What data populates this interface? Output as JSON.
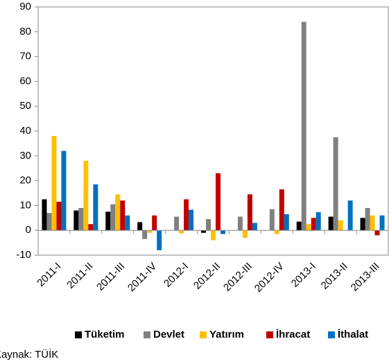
{
  "chart_data": {
    "type": "bar",
    "categories": [
      "2011-I",
      "2011-II",
      "2011-III",
      "2011-IV",
      "2012-I",
      "2012-II",
      "2012-III",
      "2012-IV",
      "2013-I",
      "2013-II",
      "2013-III"
    ],
    "series": [
      {
        "name": "Tüketim",
        "color": "#000000",
        "values": [
          12.5,
          8,
          7.5,
          3.3,
          0,
          -1,
          0,
          0,
          3.5,
          5.5,
          5
        ]
      },
      {
        "name": "Devlet",
        "color": "#808080",
        "values": [
          7,
          9,
          10.5,
          -3.5,
          5.5,
          4.5,
          5.5,
          8.5,
          84,
          37.5,
          9
        ]
      },
      {
        "name": "Yatırım",
        "color": "#ffc000",
        "values": [
          38,
          28,
          14.5,
          -1,
          -1.2,
          -4,
          -3,
          -1.5,
          2.5,
          4,
          6
        ]
      },
      {
        "name": "İhracat",
        "color": "#c00000",
        "values": [
          11.5,
          2.5,
          12,
          6,
          12.5,
          23,
          14.5,
          16.5,
          5,
          0,
          -2
        ]
      },
      {
        "name": "İthalat",
        "color": "#0070c0",
        "values": [
          32,
          18.5,
          6,
          -8,
          8.3,
          -1.5,
          3,
          6.5,
          7.3,
          12,
          6
        ]
      }
    ],
    "ylim": [
      -10,
      90
    ],
    "yticks": [
      -10,
      0,
      10,
      20,
      30,
      40,
      50,
      60,
      70,
      80,
      90
    ],
    "legend": "bottom",
    "source": "Kaynak: TÜİK"
  }
}
